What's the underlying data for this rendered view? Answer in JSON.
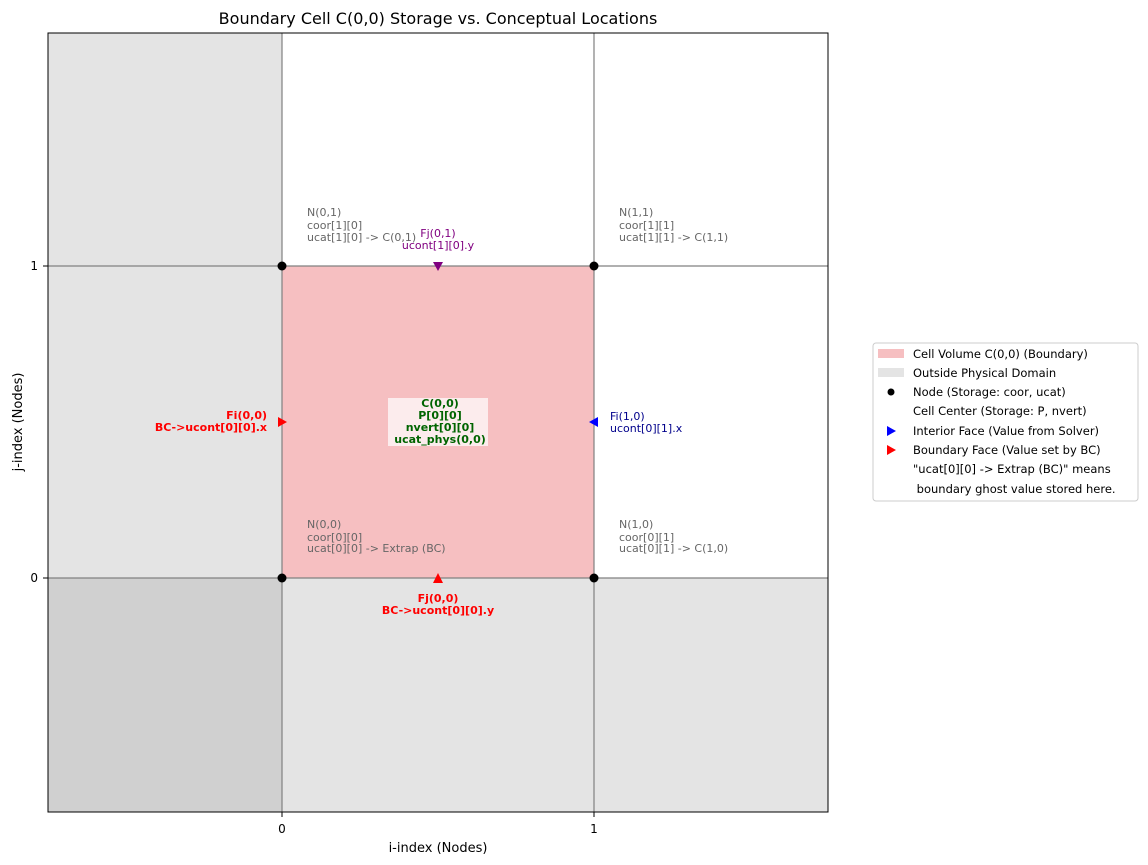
{
  "title": "Boundary Cell C(0,0) Storage vs. Conceptual Locations",
  "xlabel": "i-index (Nodes)",
  "ylabel": "j-index (Nodes)",
  "xticks": [
    "0",
    "1"
  ],
  "yticks": [
    "0",
    "1"
  ],
  "colors": {
    "cell_fill": "#f6bfc1",
    "outside_fill": "#e4e4e4",
    "corner_fill": "#d0d0d0",
    "grid": "#808080",
    "node": "#000000",
    "interior_face": "#0000ff",
    "boundary_face": "#ff0000",
    "top_face": "#800080",
    "center_text": "#006400",
    "node_text": "#666666",
    "interior_text": "#00008b"
  },
  "nodes": {
    "n01": [
      "N(0,1)",
      "coor[1][0]",
      "ucat[1][0] -> C(0,1)"
    ],
    "n11": [
      "N(1,1)",
      "coor[1][1]",
      "ucat[1][1] -> C(1,1)"
    ],
    "n00": [
      "N(0,0)",
      "coor[0][0]",
      "ucat[0][0] -> Extrap (BC)"
    ],
    "n10": [
      "N(1,0)",
      "coor[0][1]",
      "ucat[0][1] -> C(1,0)"
    ]
  },
  "faces": {
    "fj01": [
      "Fj(0,1)",
      "ucont[1][0].y"
    ],
    "fi00": [
      "Fi(0,0)",
      "BC->ucont[0][0].x"
    ],
    "fi10": [
      "Fi(1,0)",
      "ucont[0][1].x"
    ],
    "fj00": [
      "Fj(0,0)",
      "BC->ucont[0][0].y"
    ]
  },
  "center": [
    "C(0,0)",
    "P[0][0]",
    "nvert[0][0]",
    "ucat_phys(0,0)"
  ],
  "legend": [
    "Cell Volume C(0,0) (Boundary)",
    "Outside Physical Domain",
    "Node (Storage: coor, ucat)",
    "Cell Center (Storage: P, nvert)",
    "Interior Face (Value from Solver)",
    "Boundary Face (Value set by BC)",
    "\"ucat[0][0] -> Extrap (BC)\" means",
    " boundary ghost value stored here."
  ]
}
